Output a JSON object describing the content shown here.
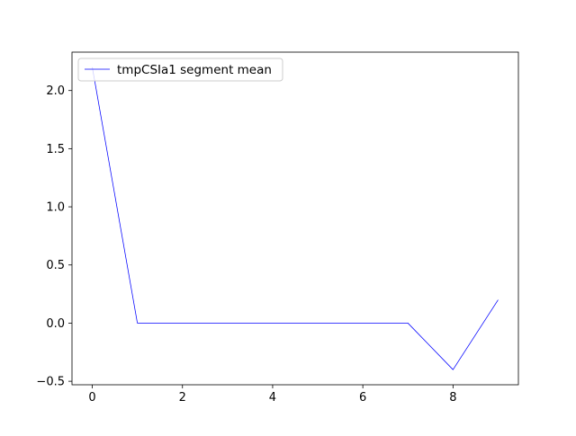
{
  "chart_data": {
    "type": "line",
    "title": "",
    "xlabel": "",
    "ylabel": "",
    "x": [
      0,
      1,
      2,
      3,
      4,
      5,
      6,
      7,
      8,
      9
    ],
    "series": [
      {
        "name": "tmpCSIa1 segment mean",
        "color": "#0000ff",
        "values": [
          2.2,
          0.0,
          0.0,
          0.0,
          0.0,
          0.0,
          0.0,
          0.0,
          -0.4,
          0.2
        ]
      }
    ],
    "xlim": [
      -0.45,
      9.45
    ],
    "ylim": [
      -0.53,
      2.33
    ],
    "xticks": [
      0,
      2,
      4,
      6,
      8
    ],
    "xtick_labels": [
      "0",
      "2",
      "4",
      "6",
      "8"
    ],
    "yticks": [
      -0.5,
      0.0,
      0.5,
      1.0,
      1.5,
      2.0
    ],
    "ytick_labels": [
      "−0.5",
      "0.0",
      "0.5",
      "1.0",
      "1.5",
      "2.0"
    ],
    "grid": false,
    "legend_position": "top-left"
  }
}
